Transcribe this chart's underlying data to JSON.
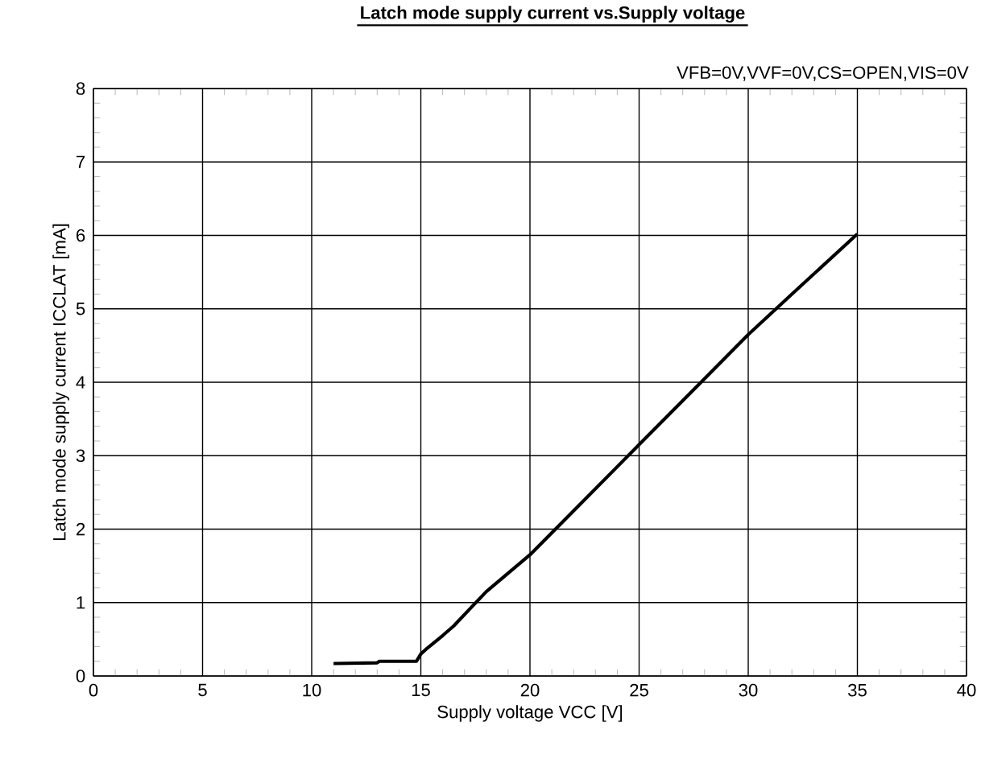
{
  "chart_data": {
    "type": "line",
    "title": "Latch mode supply current vs.Supply voltage",
    "subtitle": "VFB=0V,VVF=0V,CS=OPEN,VIS=0V",
    "xlabel": "Supply voltage VCC [V]",
    "ylabel": "Latch mode supply current ICCLAT [mA]",
    "series": [
      {
        "color": "#000000",
        "x": [
          11,
          13,
          13.1,
          14.8,
          15,
          15.3,
          16,
          16.5,
          18,
          20,
          22,
          25,
          28,
          30,
          32,
          35
        ],
        "values": [
          0.17,
          0.18,
          0.2,
          0.2,
          0.3,
          0.38,
          0.55,
          0.68,
          1.15,
          1.65,
          2.25,
          3.15,
          4.05,
          4.65,
          5.2,
          6.02
        ]
      }
    ],
    "xlim": [
      0,
      40
    ],
    "ylim": [
      0,
      8
    ],
    "xticks": [
      0,
      5,
      10,
      15,
      20,
      25,
      30,
      35,
      40
    ],
    "yticks": [
      0,
      1,
      2,
      3,
      4,
      5,
      6,
      7,
      8
    ],
    "grid": true,
    "marker": "none",
    "line_style": "solid"
  }
}
